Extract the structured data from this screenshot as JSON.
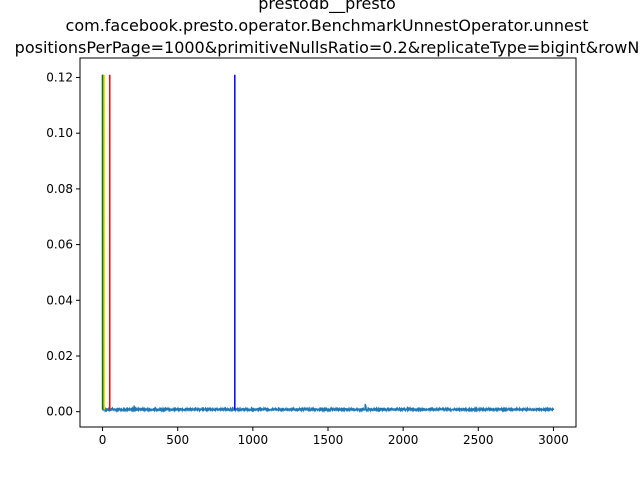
{
  "chart_data": {
    "type": "line",
    "title_lines": [
      "prestodb__presto",
      "com.facebook.presto.operator.BenchmarkUnnestOperator.unnest",
      "positionsPerPage=1000&primitiveNullsRatio=0.2&replicateType=bigint&rowN"
    ],
    "xlabel": "",
    "ylabel": "",
    "xlim": [
      -150,
      3150
    ],
    "ylim": [
      -0.0055,
      0.127
    ],
    "x_ticks": [
      0,
      500,
      1000,
      1500,
      2000,
      2500,
      3000
    ],
    "x_tick_labels": [
      "0",
      "500",
      "1000",
      "1500",
      "2000",
      "2500",
      "3000"
    ],
    "y_ticks": [
      0.0,
      0.02,
      0.04,
      0.06,
      0.08,
      0.1,
      0.12
    ],
    "y_tick_labels": [
      "0.00",
      "0.02",
      "0.04",
      "0.06",
      "0.08",
      "0.10",
      "0.12"
    ],
    "grid": false,
    "series": [
      {
        "color": "#1f77b4",
        "x_range": [
          0,
          3000
        ],
        "baseline": 0.0008,
        "spikes": [
          {
            "x": 0,
            "y": 0.121
          },
          {
            "x": 1,
            "y": 0.02
          },
          {
            "x": 2,
            "y": 0.003
          },
          {
            "x": 210,
            "y": 0.0022
          },
          {
            "x": 475,
            "y": 0.0015
          },
          {
            "x": 1200,
            "y": 0.0014
          },
          {
            "x": 1748,
            "y": 0.0028
          },
          {
            "x": 1752,
            "y": 0.0022
          },
          {
            "x": 1860,
            "y": 0.0014
          },
          {
            "x": 2370,
            "y": 0.0013
          }
        ]
      }
    ],
    "vertical_lines": [
      {
        "x": 0,
        "color": "#008000",
        "y_range": [
          0.0008,
          0.121
        ]
      },
      {
        "x": 12,
        "color": "#ffd700",
        "y_range": [
          0.0008,
          0.121
        ]
      },
      {
        "x": 48,
        "color": "#ff0000",
        "y_range": [
          0.0008,
          0.121
        ]
      },
      {
        "x": 880,
        "color": "#0000ff",
        "y_range": [
          0.0008,
          0.121
        ]
      }
    ]
  }
}
